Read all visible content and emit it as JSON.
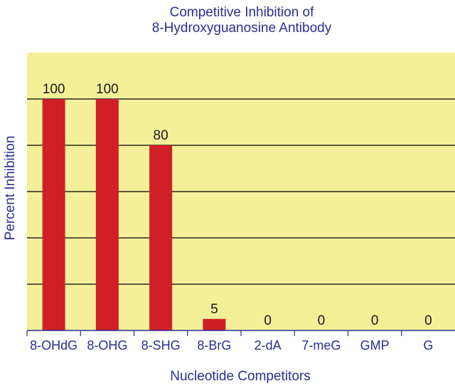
{
  "chart_data": {
    "type": "bar",
    "title_lines": [
      "Competitive Inhibition of",
      "8-Hydroxyguanosine Antibody"
    ],
    "xlabel": "Nucleotide Competitors",
    "ylabel": "Percent Inhibition",
    "categories": [
      "8-OHdG",
      "8-OHG",
      "8-SHG",
      "8-BrG",
      "2-dA",
      "7-meG",
      "GMP",
      "G"
    ],
    "values": [
      100,
      100,
      80,
      5,
      0,
      0,
      0,
      0
    ],
    "data_labels": [
      "100",
      "100",
      "80",
      "5",
      "0",
      "0",
      "0",
      "0"
    ],
    "ylim": [
      0,
      120
    ],
    "gridlines": [
      0,
      20,
      40,
      60,
      80,
      100
    ],
    "grid": true,
    "y_tick_labels_shown": false,
    "legend": "none",
    "colors": {
      "bar": "#d01f26",
      "plot_background": "#f4f09a",
      "text": "#2b2f8f",
      "grid": "#000000"
    }
  }
}
